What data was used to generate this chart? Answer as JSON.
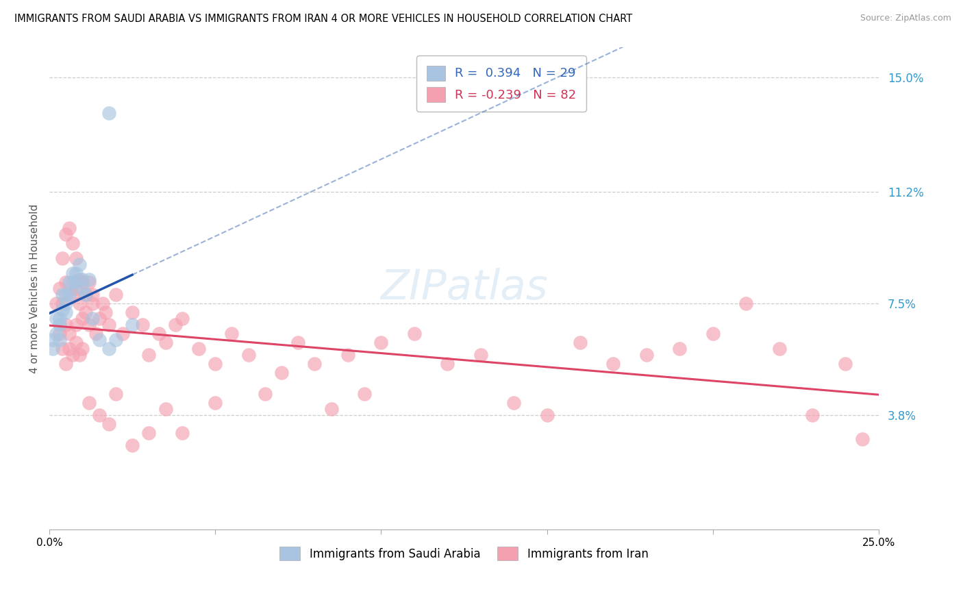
{
  "title": "IMMIGRANTS FROM SAUDI ARABIA VS IMMIGRANTS FROM IRAN 4 OR MORE VEHICLES IN HOUSEHOLD CORRELATION CHART",
  "source": "Source: ZipAtlas.com",
  "ylabel": "4 or more Vehicles in Household",
  "xlim": [
    0.0,
    0.25
  ],
  "ylim": [
    0.0,
    0.16
  ],
  "xticks": [
    0.0,
    0.05,
    0.1,
    0.15,
    0.2,
    0.25
  ],
  "ytick_right": [
    0.038,
    0.075,
    0.112,
    0.15
  ],
  "ytick_right_labels": [
    "3.8%",
    "7.5%",
    "11.2%",
    "15.0%"
  ],
  "legend1_label": "Immigrants from Saudi Arabia",
  "legend2_label": "Immigrants from Iran",
  "r1": 0.394,
  "n1": 29,
  "r2": -0.239,
  "n2": 82,
  "saudi_color": "#a8c4e0",
  "iran_color": "#f4a0b0",
  "saudi_line_color": "#2255aa",
  "iran_line_color": "#dd4466",
  "watermark": "ZIPatlas",
  "saudi_x": [
    0.001,
    0.001,
    0.002,
    0.002,
    0.003,
    0.003,
    0.003,
    0.004,
    0.004,
    0.005,
    0.005,
    0.005,
    0.006,
    0.006,
    0.007,
    0.007,
    0.008,
    0.008,
    0.009,
    0.01,
    0.01,
    0.011,
    0.012,
    0.013,
    0.015,
    0.018,
    0.02,
    0.025,
    0.018
  ],
  "saudi_y": [
    0.06,
    0.063,
    0.065,
    0.07,
    0.063,
    0.068,
    0.07,
    0.073,
    0.078,
    0.072,
    0.075,
    0.078,
    0.078,
    0.082,
    0.082,
    0.085,
    0.082,
    0.085,
    0.088,
    0.08,
    0.083,
    0.078,
    0.083,
    0.07,
    0.063,
    0.06,
    0.063,
    0.068,
    0.138
  ],
  "iran_x": [
    0.002,
    0.003,
    0.003,
    0.004,
    0.004,
    0.005,
    0.005,
    0.005,
    0.006,
    0.006,
    0.007,
    0.007,
    0.008,
    0.008,
    0.008,
    0.009,
    0.009,
    0.01,
    0.01,
    0.011,
    0.011,
    0.012,
    0.012,
    0.013,
    0.013,
    0.014,
    0.015,
    0.016,
    0.017,
    0.018,
    0.02,
    0.022,
    0.025,
    0.028,
    0.03,
    0.033,
    0.035,
    0.038,
    0.04,
    0.045,
    0.05,
    0.055,
    0.06,
    0.065,
    0.07,
    0.075,
    0.08,
    0.085,
    0.09,
    0.095,
    0.1,
    0.11,
    0.12,
    0.13,
    0.14,
    0.15,
    0.16,
    0.17,
    0.18,
    0.19,
    0.2,
    0.21,
    0.22,
    0.23,
    0.24,
    0.245,
    0.004,
    0.005,
    0.006,
    0.007,
    0.008,
    0.009,
    0.01,
    0.012,
    0.015,
    0.018,
    0.02,
    0.025,
    0.03,
    0.035,
    0.04,
    0.05
  ],
  "iran_y": [
    0.075,
    0.065,
    0.08,
    0.075,
    0.09,
    0.068,
    0.082,
    0.098,
    0.065,
    0.1,
    0.078,
    0.095,
    0.08,
    0.068,
    0.09,
    0.075,
    0.083,
    0.07,
    0.082,
    0.078,
    0.072,
    0.082,
    0.068,
    0.075,
    0.078,
    0.065,
    0.07,
    0.075,
    0.072,
    0.068,
    0.078,
    0.065,
    0.072,
    0.068,
    0.058,
    0.065,
    0.062,
    0.068,
    0.07,
    0.06,
    0.055,
    0.065,
    0.058,
    0.045,
    0.052,
    0.062,
    0.055,
    0.04,
    0.058,
    0.045,
    0.062,
    0.065,
    0.055,
    0.058,
    0.042,
    0.038,
    0.062,
    0.055,
    0.058,
    0.06,
    0.065,
    0.075,
    0.06,
    0.038,
    0.055,
    0.03,
    0.06,
    0.055,
    0.06,
    0.058,
    0.062,
    0.058,
    0.06,
    0.042,
    0.038,
    0.035,
    0.045,
    0.028,
    0.032,
    0.04,
    0.032,
    0.042
  ]
}
